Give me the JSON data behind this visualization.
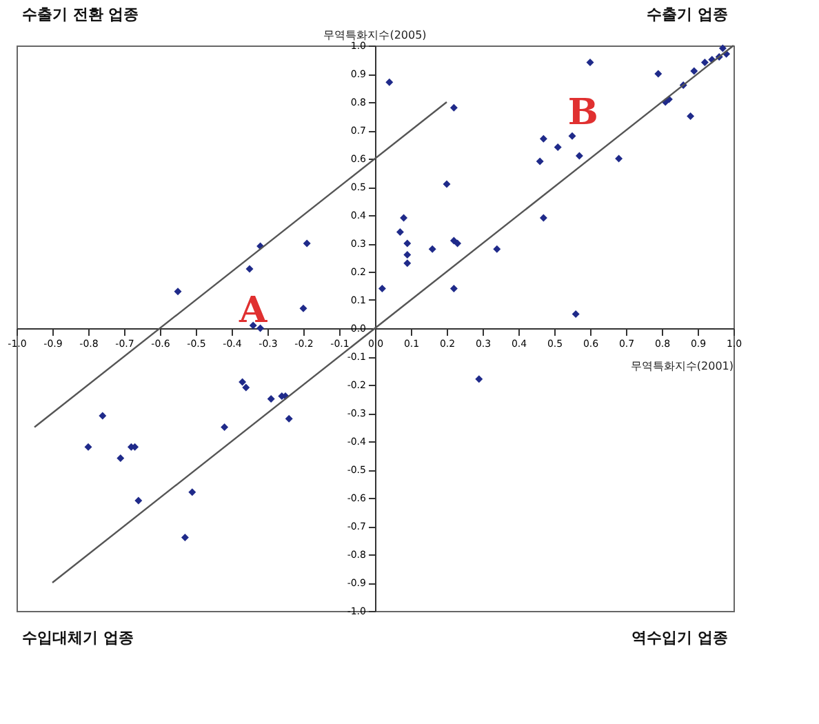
{
  "chart_data": {
    "type": "scatter",
    "xlabel": "무역특화지수(2001)",
    "ylabel": "무역특화지수(2005)",
    "xlim": [
      -1.0,
      1.0
    ],
    "ylim": [
      -1.0,
      1.0
    ],
    "xticks": [
      {
        "value": -1,
        "label": "-1.0"
      },
      -0.9,
      -0.8,
      -0.7,
      -0.6,
      -0.5,
      -0.4,
      -0.3,
      -0.2,
      -0.1,
      {
        "value": 0,
        "label": "0.0"
      },
      0.1,
      0.2,
      0.3,
      0.4,
      0.5,
      0.6,
      0.7,
      0.8,
      0.9,
      {
        "value": 1,
        "label": "1.0"
      }
    ],
    "yticks": [
      {
        "value": -1,
        "label": "-1.0"
      },
      -0.9,
      -0.8,
      -0.7,
      -0.6,
      -0.5,
      -0.4,
      -0.3,
      -0.2,
      -0.1,
      {
        "value": 0,
        "label": "0.0"
      },
      0.1,
      0.2,
      0.3,
      0.4,
      0.5,
      0.6,
      0.7,
      0.8,
      0.9,
      {
        "value": 1,
        "label": "1.0"
      }
    ],
    "grid": false,
    "annotations": [
      "수출기 전환 업종",
      "수출기 업종",
      "수입대체기 업종",
      "역수입기 업종",
      "A",
      "B"
    ],
    "series": [
      {
        "marker": "diamond",
        "color": "#1f2a8a",
        "x": [
          0.04,
          0.22,
          0.6,
          0.2,
          0.08,
          0.07,
          0.09,
          0.09,
          0.16,
          0.22,
          0.23,
          0.02,
          0.09,
          0.22,
          0.34,
          0.47,
          0.56,
          0.29,
          0.47,
          0.46,
          0.51,
          0.55,
          0.57,
          0.68,
          0.81,
          0.82,
          0.86,
          0.89,
          0.92,
          0.94,
          0.96,
          0.98,
          0.97,
          0.88,
          0.79,
          -0.55,
          -0.32,
          -0.35,
          -0.19,
          -0.2,
          -0.34,
          -0.32,
          -0.37,
          -0.36,
          -0.29,
          -0.26,
          -0.25,
          -0.24,
          -0.42,
          -0.76,
          -0.8,
          -0.68,
          -0.67,
          -0.71,
          -0.66,
          -0.51,
          -0.53
        ],
        "values": [
          0.87,
          0.78,
          0.94,
          0.51,
          0.39,
          0.34,
          0.3,
          0.26,
          0.28,
          0.31,
          0.3,
          0.14,
          0.23,
          0.14,
          0.28,
          0.39,
          0.05,
          -0.18,
          0.67,
          0.59,
          0.64,
          0.68,
          0.61,
          0.6,
          0.8,
          0.81,
          0.86,
          0.91,
          0.94,
          0.95,
          0.96,
          0.97,
          0.99,
          0.75,
          0.9,
          0.13,
          0.29,
          0.21,
          0.3,
          0.07,
          0.01,
          0.0,
          -0.19,
          -0.21,
          -0.25,
          -0.24,
          -0.24,
          -0.32,
          -0.35,
          -0.31,
          -0.42,
          -0.42,
          -0.42,
          -0.46,
          -0.61,
          -0.58,
          -0.74
        ]
      },
      {
        "type": "line",
        "marker": "none",
        "color": "#555555",
        "x": [
          -0.9,
          1.0
        ],
        "values": [
          -0.9,
          1.0
        ]
      },
      {
        "type": "line",
        "marker": "none",
        "color": "#555555",
        "x": [
          -0.95,
          0.2
        ],
        "values": [
          -0.35,
          0.8
        ]
      }
    ]
  }
}
